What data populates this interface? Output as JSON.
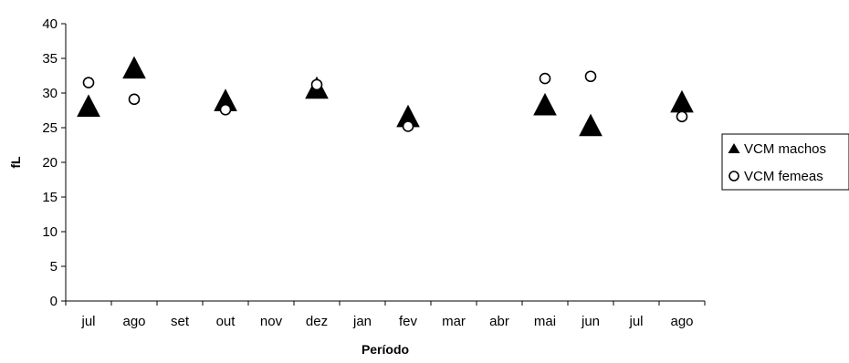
{
  "chart_data": {
    "type": "scatter",
    "title": "",
    "xlabel": "Período",
    "ylabel": "fL",
    "categories": [
      "jul",
      "ago",
      "set",
      "out",
      "nov",
      "dez",
      "jan",
      "fev",
      "mar",
      "abr",
      "mai",
      "jun",
      "jul",
      "ago"
    ],
    "ylim": [
      0,
      40
    ],
    "yticks": [
      0,
      5,
      10,
      15,
      20,
      25,
      30,
      35,
      40
    ],
    "grid": false,
    "legend_position": "right",
    "series": [
      {
        "name": "VCM machos",
        "marker": "triangle-filled",
        "color": "#000000",
        "values": [
          27.8,
          33.3,
          null,
          28.6,
          null,
          30.4,
          null,
          26.3,
          null,
          null,
          28.0,
          25.0,
          null,
          28.4
        ]
      },
      {
        "name": "VCM femeas",
        "marker": "circle-open",
        "color": "#000000",
        "values": [
          31.5,
          29.1,
          null,
          27.6,
          null,
          31.2,
          null,
          25.2,
          null,
          null,
          32.1,
          32.4,
          null,
          26.6
        ]
      }
    ]
  }
}
